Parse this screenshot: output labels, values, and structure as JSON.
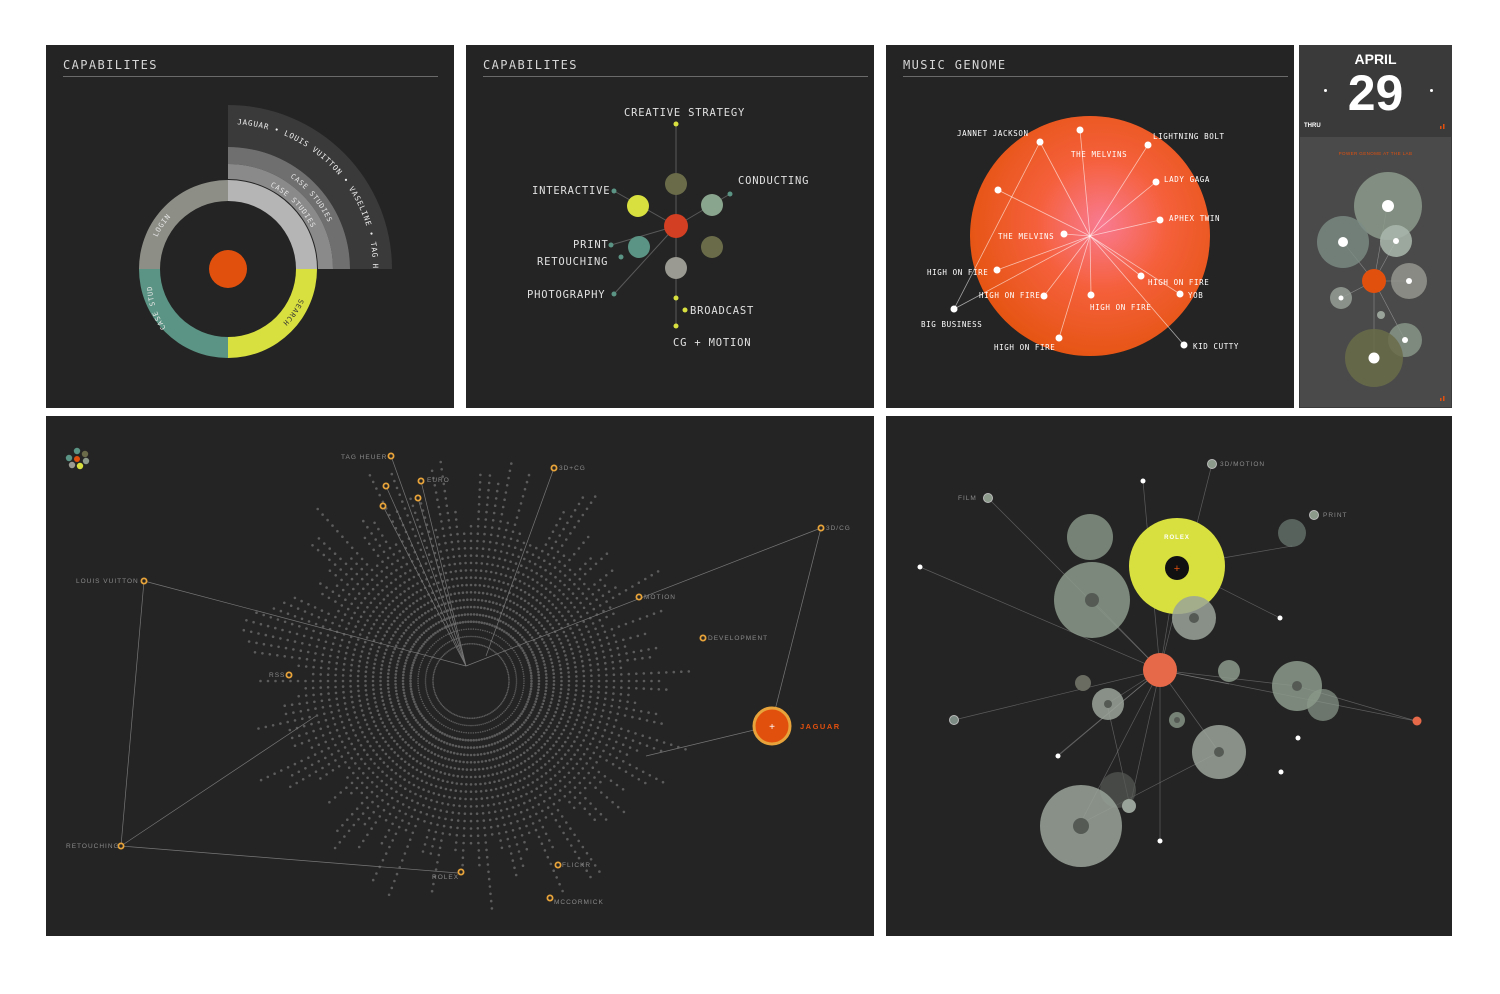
{
  "colors": {
    "panel_bg": "#242424",
    "orange": "#e2500e",
    "yellow": "#d8e03f",
    "teal": "#5b9484",
    "sage": "#8b9a8b",
    "olive": "#6a6c49",
    "gray": "#9a9a92"
  },
  "panel1": {
    "title": "CAPABILITES",
    "arc_labels": [
      "LOGIN",
      "CASE STUDIES",
      "SEARCH",
      "CASE STUDIES",
      "CASE STUDIES"
    ],
    "outer_arc_label": "JAGUAR • LOUIS VUITTON • VASELINE • TAG HEUER"
  },
  "panel2": {
    "title": "CAPABILITES",
    "labels": [
      "CREATIVE STRATEGY",
      "CONDUCTING",
      "INTERACTIVE",
      "PRINT",
      "RETOUCHING",
      "PHOTOGRAPHY",
      "BROADCAST",
      "CG + MOTION"
    ]
  },
  "panel3": {
    "title": "MUSIC GENOME",
    "labels": [
      "JANNET JACKSON",
      "LIGHTNING BOLT",
      "THE MELVINS",
      "LADY GAGA",
      "APHEX TWIN",
      "THE MELVINS",
      "HIGH ON FIRE",
      "HIGH ON FIRE",
      "HIGH ON FIRE",
      "YOB",
      "HIGH ON FIRE",
      "BIG BUSINESS",
      "HIGH ON FIRE",
      "KID CUTTY"
    ]
  },
  "calendar": {
    "month": "APRIL",
    "day": "29",
    "thru": "THRU",
    "title": "POWER GENOME AT THE LAB"
  },
  "panel5": {
    "labels": [
      "TAG HEUER",
      "EURO",
      "3D+CG",
      "3D/CG",
      "LOUIS VUITTON",
      "MOTION",
      "DEVELOPMENT",
      "RSS",
      "JAGUAR",
      "RETOUCHING",
      "FLICKR",
      "ROLEX",
      "MCCORMICK"
    ]
  },
  "panel6": {
    "labels": [
      "3D/MOTION",
      "FILM",
      "PRINT",
      "ROLEX"
    ]
  }
}
